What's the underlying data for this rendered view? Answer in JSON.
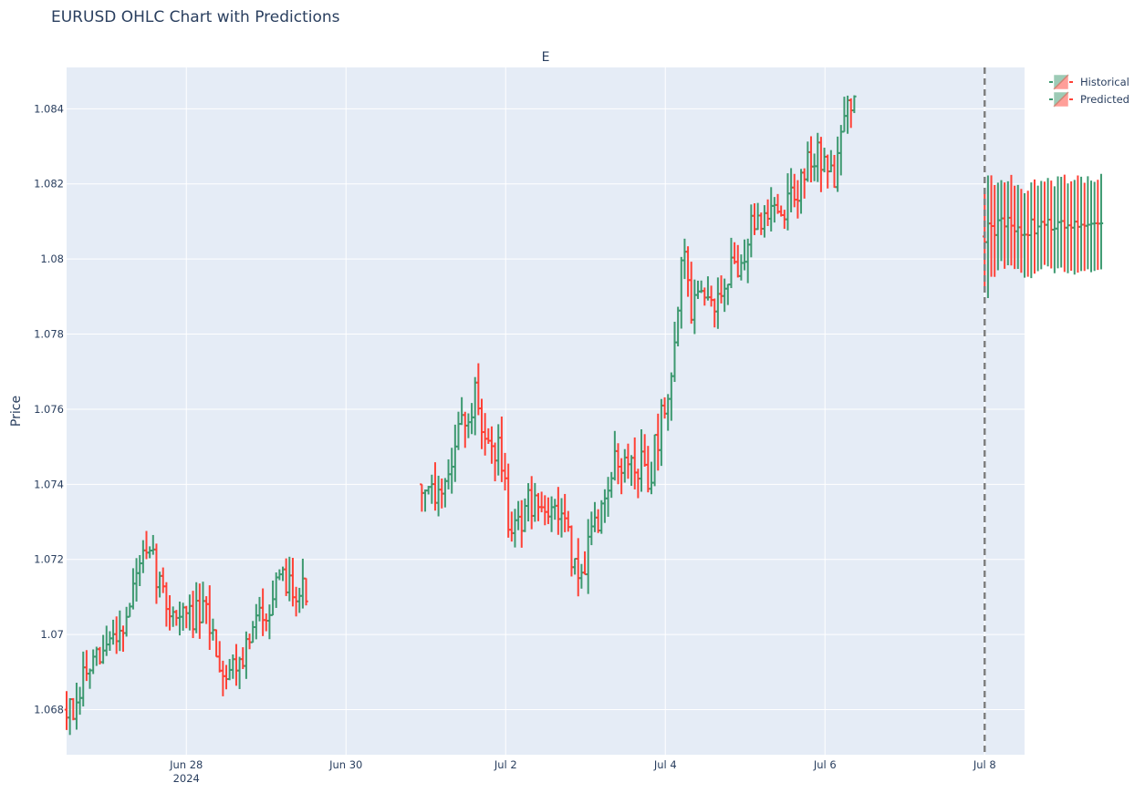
{
  "chart_data": {
    "type": "ohlc",
    "title": "EURUSD OHLC Chart with Predictions",
    "subtitle": "E",
    "ylabel": "Price",
    "xlabel": "",
    "x_unit": "days since 2024-06-27 00:00",
    "xlim": [
      -0.5,
      11.5
    ],
    "ylim": [
      1.0668,
      1.0851
    ],
    "y_ticks": [
      1.068,
      1.07,
      1.072,
      1.074,
      1.076,
      1.078,
      1.08,
      1.082,
      1.084
    ],
    "y_tick_labels": [
      "1.068",
      "1.07",
      "1.072",
      "1.074",
      "1.076",
      "1.078",
      "1.08",
      "1.082",
      "1.084"
    ],
    "x_ticks": [
      {
        "x": 1,
        "label": "Jun 28",
        "sublabel": "2024"
      },
      {
        "x": 3,
        "label": "Jun 30",
        "sublabel": ""
      },
      {
        "x": 5,
        "label": "Jul 2",
        "sublabel": ""
      },
      {
        "x": 7,
        "label": "Jul 4",
        "sublabel": ""
      },
      {
        "x": 9,
        "label": "Jul 6",
        "sublabel": ""
      },
      {
        "x": 11,
        "label": "Jul 8",
        "sublabel": ""
      }
    ],
    "divider_x": 11,
    "grid": true,
    "legend": "top-right",
    "colors": {
      "increasing": "#3d9970",
      "decreasing": "#ff4136",
      "plot_bg": "#e5ecf6",
      "grid": "#ffffff",
      "divider": "#808080"
    },
    "series": [
      {
        "name": "Historical",
        "segments": [
          {
            "x_start": -0.5,
            "step": 0.04167,
            "anchors": [
              [
                0,
                1.068
              ],
              [
                3,
                1.0678
              ],
              [
                5,
                1.0689
              ],
              [
                10,
                1.0693
              ],
              [
                14,
                1.07
              ],
              [
                18,
                1.0704
              ],
              [
                22,
                1.072
              ],
              [
                26,
                1.0719
              ],
              [
                30,
                1.0708
              ],
              [
                34,
                1.0705
              ],
              [
                38,
                1.0705
              ],
              [
                42,
                1.0705
              ],
              [
                44,
                1.07
              ],
              [
                47,
                1.069
              ],
              [
                50,
                1.0692
              ],
              [
                54,
                1.0696
              ],
              [
                58,
                1.0705
              ],
              [
                62,
                1.071
              ],
              [
                66,
                1.0715
              ],
              [
                70,
                1.0712
              ],
              [
                72,
                1.0712
              ]
            ],
            "amp": 0.0009,
            "seed": 7
          },
          {
            "x_start": 3.95,
            "step": 0.04167,
            "anchors": [
              [
                0,
                1.074
              ],
              [
                4,
                1.0738
              ],
              [
                8,
                1.0745
              ],
              [
                12,
                1.0755
              ],
              [
                16,
                1.0763
              ],
              [
                20,
                1.0752
              ],
              [
                24,
                1.0748
              ],
              [
                26,
                1.0732
              ],
              [
                30,
                1.073
              ],
              [
                34,
                1.0738
              ],
              [
                38,
                1.0734
              ],
              [
                42,
                1.0732
              ],
              [
                44,
                1.0725
              ],
              [
                47,
                1.0715
              ],
              [
                50,
                1.0722
              ],
              [
                54,
                1.0735
              ],
              [
                58,
                1.0745
              ],
              [
                62,
                1.0748
              ],
              [
                66,
                1.0745
              ],
              [
                68,
                1.074
              ],
              [
                72,
                1.0758
              ],
              [
                74,
                1.076
              ],
              [
                77,
                1.079
              ],
              [
                79,
                1.0805
              ],
              [
                81,
                1.0785
              ],
              [
                84,
                1.0788
              ],
              [
                88,
                1.079
              ],
              [
                92,
                1.0795
              ],
              [
                96,
                1.08
              ],
              [
                100,
                1.081
              ],
              [
                104,
                1.0812
              ],
              [
                108,
                1.0812
              ],
              [
                112,
                1.0818
              ],
              [
                116,
                1.0825
              ],
              [
                120,
                1.0828
              ],
              [
                122,
                1.0825
              ],
              [
                124,
                1.0818
              ],
              [
                126,
                1.083
              ],
              [
                128,
                1.0838
              ],
              [
                130,
                1.084
              ]
            ],
            "amp": 0.001,
            "seed": 19
          }
        ]
      },
      {
        "name": "Predicted",
        "x_start": 11.0,
        "step": 0.0417,
        "count": 36,
        "start_value": 1.0806,
        "end_value": 1.0809,
        "start_spread": 0.001,
        "end_spread": 0.0012,
        "seed": 31
      }
    ]
  }
}
